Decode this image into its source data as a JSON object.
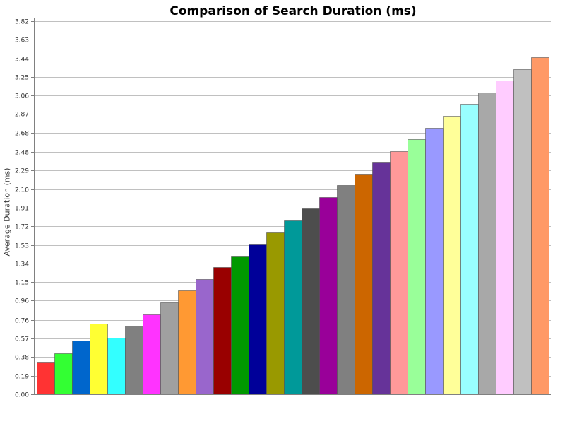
{
  "chart_data": {
    "type": "bar",
    "title": "Comparison of Search Duration (ms)",
    "xlabel": "",
    "ylabel": "Average Duration (ms)",
    "ylim": [
      0,
      3.82
    ],
    "yticks": [
      "0.00",
      "0.19",
      "0.38",
      "0.57",
      "0.76",
      "0.96",
      "1.15",
      "1.34",
      "1.53",
      "1.72",
      "1.91",
      "2.10",
      "2.29",
      "2.48",
      "2.68",
      "2.87",
      "3.06",
      "3.25",
      "3.44",
      "3.63",
      "3.82"
    ],
    "grid": true,
    "legend": "none",
    "values": [
      0.33,
      0.42,
      0.55,
      0.72,
      0.58,
      0.7,
      0.82,
      0.94,
      1.06,
      1.18,
      1.3,
      1.42,
      1.54,
      1.66,
      1.78,
      1.9,
      2.02,
      2.14,
      2.26,
      2.38,
      2.49,
      2.61,
      2.73,
      2.85,
      2.97,
      3.09,
      3.21,
      3.33,
      3.45
    ],
    "colors": [
      "#ff3333",
      "#33ff33",
      "#0066cc",
      "#ffff33",
      "#33ffff",
      "#808080",
      "#ff33ff",
      "#a0a0a0",
      "#ff9933",
      "#9966cc",
      "#990000",
      "#009900",
      "#000099",
      "#999900",
      "#009999",
      "#4d4d4d",
      "#990099",
      "#808080",
      "#cc6600",
      "#663399",
      "#ff9999",
      "#99ff99",
      "#9999ff",
      "#ffff99",
      "#99ffff",
      "#a8a8a8",
      "#ffccff",
      "#c0c0c0",
      "#ff9966"
    ]
  }
}
